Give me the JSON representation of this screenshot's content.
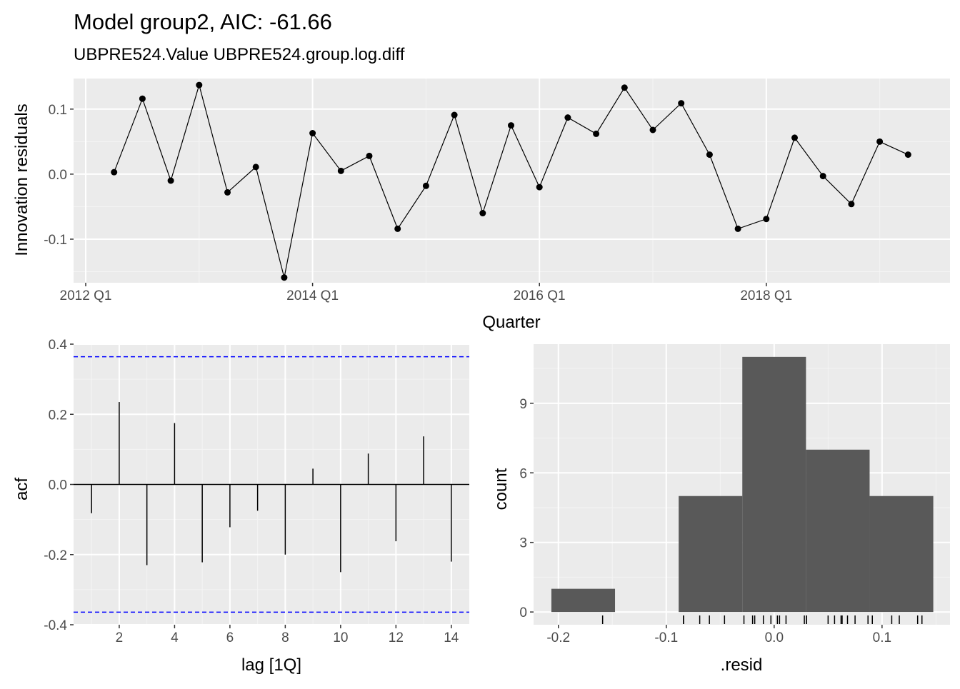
{
  "title": "Model group2, AIC: -61.66",
  "subtitle": "UBPRE524.Value UBPRE524.group.log.diff",
  "colors": {
    "panel": "#ebebeb",
    "grid_major": "#ffffff",
    "grid_minor": "#f4f4f4",
    "line": "#000000",
    "bar": "#595959",
    "ci_line": "#0000ff",
    "tick_text": "#4d4d4d"
  },
  "chart_data": [
    {
      "type": "line",
      "xlabel": "Quarter",
      "ylabel": "Innovation residuals",
      "x_ticks": [
        "2012 Q1",
        "2014 Q1",
        "2016 Q1",
        "2018 Q1"
      ],
      "y_ticks": [
        "-0.1",
        "0.0",
        "0.1"
      ],
      "ylim": [
        -0.167,
        0.147
      ],
      "grid": true,
      "x": [
        "2012 Q2",
        "2012 Q3",
        "2012 Q4",
        "2013 Q1",
        "2013 Q2",
        "2013 Q3",
        "2013 Q4",
        "2014 Q1",
        "2014 Q2",
        "2014 Q3",
        "2014 Q4",
        "2015 Q1",
        "2015 Q2",
        "2015 Q3",
        "2015 Q4",
        "2016 Q1",
        "2016 Q2",
        "2016 Q3",
        "2016 Q4",
        "2017 Q1",
        "2017 Q2",
        "2017 Q3",
        "2017 Q4",
        "2018 Q1",
        "2018 Q2",
        "2018 Q3",
        "2018 Q4",
        "2019 Q1",
        "2019 Q2"
      ],
      "values": [
        0.003,
        0.116,
        -0.01,
        0.137,
        -0.028,
        0.011,
        -0.159,
        0.063,
        0.005,
        0.028,
        -0.084,
        -0.018,
        0.091,
        -0.06,
        0.075,
        -0.02,
        0.087,
        0.062,
        0.133,
        0.068,
        0.109,
        0.03,
        -0.084,
        -0.069,
        0.056,
        -0.003,
        -0.046,
        0.05,
        0.03
      ]
    },
    {
      "type": "bar",
      "xlabel": "lag [1Q]",
      "ylabel": "acf",
      "x_ticks": [
        "2",
        "4",
        "6",
        "8",
        "10",
        "12",
        "14"
      ],
      "y_ticks": [
        "-0.4",
        "-0.2",
        "0.0",
        "0.2",
        "0.4"
      ],
      "xlim": [
        0.35,
        14.65
      ],
      "ylim": [
        -0.4,
        0.4
      ],
      "grid": true,
      "categories": [
        1,
        2,
        3,
        4,
        5,
        6,
        7,
        8,
        9,
        10,
        11,
        12,
        13,
        14
      ],
      "values": [
        -0.082,
        0.235,
        -0.23,
        0.175,
        -0.222,
        -0.122,
        -0.075,
        -0.2,
        0.045,
        -0.25,
        0.088,
        -0.162,
        0.137,
        -0.22
      ],
      "ci": 0.364
    },
    {
      "type": "bar",
      "xlabel": ".resid",
      "ylabel": "count",
      "x_ticks": [
        "-0.2",
        "-0.1",
        "0.0",
        "0.1"
      ],
      "y_ticks": [
        "0",
        "3",
        "6",
        "9"
      ],
      "xlim": [
        -0.223,
        0.163
      ],
      "ylim": [
        -0.55,
        11.55
      ],
      "grid": true,
      "bins": [
        {
          "x0": -0.2065,
          "x1": -0.1475,
          "count": 1
        },
        {
          "x0": -0.1475,
          "x1": -0.0885,
          "count": 0
        },
        {
          "x0": -0.0885,
          "x1": -0.0295,
          "count": 5
        },
        {
          "x0": -0.0295,
          "x1": 0.0295,
          "count": 11
        },
        {
          "x0": 0.0295,
          "x1": 0.0885,
          "count": 7
        },
        {
          "x0": 0.0885,
          "x1": 0.1475,
          "count": 5
        }
      ],
      "rug": [
        -0.159,
        -0.084,
        -0.084,
        -0.069,
        -0.06,
        -0.046,
        -0.028,
        -0.02,
        -0.018,
        -0.01,
        -0.003,
        0.003,
        0.005,
        0.011,
        0.028,
        0.03,
        0.03,
        0.05,
        0.056,
        0.062,
        0.063,
        0.068,
        0.075,
        0.087,
        0.091,
        0.109,
        0.116,
        0.133,
        0.137
      ]
    }
  ]
}
